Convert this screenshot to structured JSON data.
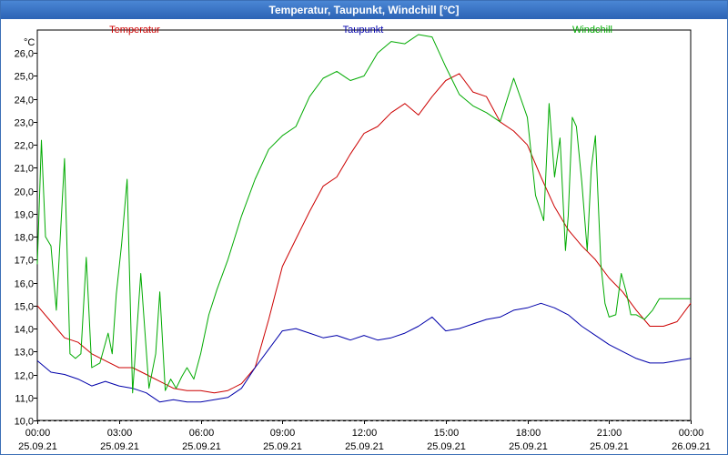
{
  "chart_data": {
    "type": "line",
    "title": "Temperatur, Taupunkt, Windchill [°C]",
    "ylabel": "°C",
    "ylim": [
      10.0,
      27.0
    ],
    "xlim": [
      0,
      24
    ],
    "yticks": [
      10.0,
      11.0,
      12.0,
      13.0,
      14.0,
      15.0,
      16.0,
      17.0,
      18.0,
      19.0,
      20.0,
      21.0,
      22.0,
      23.0,
      24.0,
      25.0,
      26.0
    ],
    "ytick_labels": [
      "10,0",
      "11,0",
      "12,0",
      "13,0",
      "14,0",
      "15,0",
      "16,0",
      "17,0",
      "18,0",
      "19,0",
      "20,0",
      "21,0",
      "22,0",
      "23,0",
      "24,0",
      "25,0",
      "26,0"
    ],
    "xticks": [
      {
        "h": 0,
        "time": "00:00",
        "date": "25.09.21"
      },
      {
        "h": 3,
        "time": "03:00",
        "date": "25.09.21"
      },
      {
        "h": 6,
        "time": "06:00",
        "date": "25.09.21"
      },
      {
        "h": 9,
        "time": "09:00",
        "date": "25.09.21"
      },
      {
        "h": 12,
        "time": "12:00",
        "date": "25.09.21"
      },
      {
        "h": 15,
        "time": "15:00",
        "date": "25.09.21"
      },
      {
        "h": 18,
        "time": "18:00",
        "date": "25.09.21"
      },
      {
        "h": 21,
        "time": "21:00",
        "date": "25.09.21"
      },
      {
        "h": 24,
        "time": "00:00",
        "date": "26.09.21"
      }
    ],
    "grid": true,
    "series": [
      {
        "name": "Temperatur",
        "color": "#cc0000",
        "x": [
          0,
          0.5,
          1,
          1.5,
          2,
          2.5,
          3,
          3.5,
          4,
          4.5,
          5,
          5.5,
          6,
          6.5,
          7,
          7.5,
          8,
          8.5,
          9,
          9.5,
          10,
          10.5,
          11,
          11.5,
          12,
          12.5,
          13,
          13.5,
          14,
          14.5,
          15,
          15.5,
          16,
          16.5,
          17,
          17.5,
          18,
          18.5,
          19,
          19.5,
          20,
          20.5,
          21,
          21.5,
          22,
          22.5,
          23,
          23.5,
          24
        ],
        "y": [
          15.0,
          14.3,
          13.6,
          13.4,
          12.9,
          12.6,
          12.3,
          12.3,
          12.0,
          11.7,
          11.4,
          11.3,
          11.3,
          11.2,
          11.3,
          11.6,
          12.3,
          14.4,
          16.7,
          17.9,
          19.1,
          20.2,
          20.6,
          21.6,
          22.5,
          22.8,
          23.4,
          23.8,
          23.3,
          24.1,
          24.8,
          25.1,
          24.3,
          24.1,
          23.0,
          22.6,
          22.0,
          20.6,
          19.3,
          18.3,
          17.6,
          17.0,
          16.2,
          15.6,
          14.8,
          14.1,
          14.1,
          14.3,
          15.1
        ]
      },
      {
        "name": "Taupunkt",
        "color": "#0000aa",
        "x": [
          0,
          0.5,
          1,
          1.5,
          2,
          2.5,
          3,
          3.5,
          4,
          4.5,
          5,
          5.5,
          6,
          6.5,
          7,
          7.5,
          8,
          8.5,
          9,
          9.5,
          10,
          10.5,
          11,
          11.5,
          12,
          12.5,
          13,
          13.5,
          14,
          14.5,
          15,
          15.5,
          16,
          16.5,
          17,
          17.5,
          18,
          18.5,
          19,
          19.5,
          20,
          20.5,
          21,
          21.5,
          22,
          22.5,
          23,
          23.5,
          24
        ],
        "y": [
          12.6,
          12.1,
          12.0,
          11.8,
          11.5,
          11.7,
          11.5,
          11.4,
          11.2,
          10.8,
          10.9,
          10.8,
          10.8,
          10.9,
          11.0,
          11.4,
          12.3,
          13.1,
          13.9,
          14.0,
          13.8,
          13.6,
          13.7,
          13.5,
          13.7,
          13.5,
          13.6,
          13.8,
          14.1,
          14.5,
          13.9,
          14.0,
          14.2,
          14.4,
          14.5,
          14.8,
          14.9,
          15.1,
          14.9,
          14.6,
          14.1,
          13.7,
          13.3,
          13.0,
          12.7,
          12.5,
          12.5,
          12.6,
          12.7
        ]
      },
      {
        "name": "Windchill",
        "color": "#00aa00",
        "x": [
          0,
          0.15,
          0.3,
          0.5,
          0.7,
          1.0,
          1.2,
          1.4,
          1.6,
          1.8,
          2.0,
          2.3,
          2.6,
          2.75,
          2.9,
          3.1,
          3.3,
          3.5,
          3.8,
          4.1,
          4.35,
          4.5,
          4.7,
          4.9,
          5.1,
          5.3,
          5.5,
          5.75,
          6.0,
          6.3,
          6.6,
          7.0,
          7.5,
          8.0,
          8.5,
          9.0,
          9.5,
          10.0,
          10.5,
          11.0,
          11.5,
          12.0,
          12.5,
          13.0,
          13.5,
          14.0,
          14.5,
          15.0,
          15.5,
          16.0,
          16.5,
          17.0,
          17.5,
          18.0,
          18.3,
          18.6,
          18.8,
          19.0,
          19.2,
          19.4,
          19.5,
          19.65,
          19.8,
          20.0,
          20.2,
          20.35,
          20.5,
          20.7,
          20.85,
          21.0,
          21.25,
          21.45,
          21.65,
          21.8,
          22.0,
          22.3,
          22.6,
          22.85,
          23.0,
          23.3,
          23.6,
          24.0
        ],
        "y": [
          16.8,
          22.2,
          18.0,
          17.6,
          14.8,
          21.4,
          12.9,
          12.7,
          12.9,
          17.1,
          12.3,
          12.5,
          13.8,
          12.9,
          15.5,
          17.7,
          20.5,
          11.2,
          16.4,
          11.4,
          12.9,
          15.6,
          11.3,
          11.8,
          11.4,
          11.9,
          12.3,
          11.8,
          12.9,
          14.6,
          15.7,
          17.0,
          18.9,
          20.5,
          21.8,
          22.4,
          22.8,
          24.1,
          24.9,
          25.2,
          24.8,
          25.0,
          26.0,
          26.5,
          26.4,
          26.8,
          26.7,
          25.4,
          24.2,
          23.7,
          23.4,
          23.0,
          24.9,
          23.2,
          19.8,
          18.7,
          23.8,
          20.6,
          22.3,
          17.4,
          18.9,
          23.2,
          22.8,
          20.4,
          17.4,
          21.0,
          22.4,
          16.8,
          15.1,
          14.5,
          14.6,
          16.4,
          15.5,
          14.6,
          14.6,
          14.4,
          14.8,
          15.3,
          15.3,
          15.3,
          15.3,
          15.3
        ]
      }
    ]
  }
}
